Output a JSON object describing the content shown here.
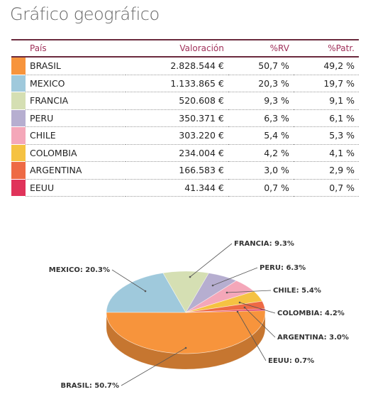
{
  "header": {
    "title": "Gráfico geográfico"
  },
  "table": {
    "columns": [
      "País",
      "Valoración",
      "%RV",
      "%Patr."
    ],
    "rows": [
      [
        "BRASIL",
        "2.828.544 €",
        "50,7 %",
        "49,2 %"
      ],
      [
        "MEXICO",
        "1.133.865 €",
        "20,3 %",
        "19,7 %"
      ],
      [
        "FRANCIA",
        "520.608 €",
        "9,3 %",
        "9,1 %"
      ],
      [
        "PERU",
        "350.371 €",
        "6,3 %",
        "6,1 %"
      ],
      [
        "CHILE",
        "303.220 €",
        "5,4 %",
        "5,3 %"
      ],
      [
        "COLOMBIA",
        "234.004 €",
        "4,2 %",
        "4,1 %"
      ],
      [
        "ARGENTINA",
        "166.583 €",
        "3,0 %",
        "2,9 %"
      ],
      [
        "EEUU",
        "41.344 €",
        "0,7 %",
        "0,7 %"
      ]
    ]
  },
  "chart_data": {
    "type": "pie",
    "values": [
      50.7,
      20.3,
      9.3,
      6.3,
      5.4,
      4.2,
      3.0,
      0.7
    ],
    "value_labels": [
      "BRASIL: 50.7%",
      "MEXICO: 20.3%",
      "FRANCIA: 9.3%",
      "PERU: 6.3%",
      "CHILE: 5.4%",
      "COLOMBIA: 4.2%",
      "ARGENTINA: 3.0%",
      "EEUU: 0.7%"
    ],
    "colors": [
      "#f7943c",
      "#9fc9dc",
      "#d5dfb3",
      "#b6aed0",
      "#f4a7b9",
      "#f5c242",
      "#ee6a45",
      "#e0335a"
    ]
  }
}
